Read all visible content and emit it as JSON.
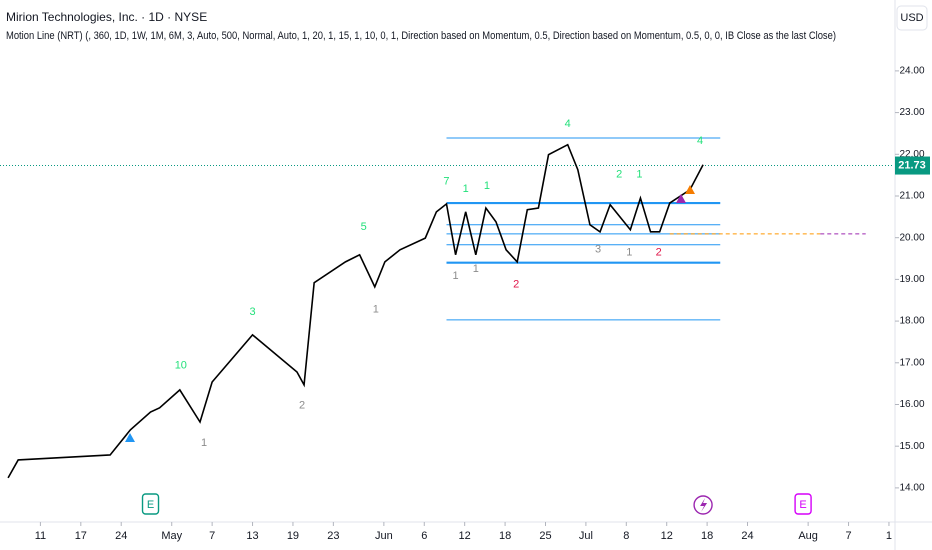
{
  "chart_data": {
    "type": "line",
    "title": "Mirion Technologies, Inc. · 1D · NYSE",
    "subtitle": "Motion Line (NRT) (, 360, 1D, 1W, 1M, 6M, 3, Auto, 500, Normal, Auto, 1, 20, 1, 15, 1, 10, 0, 1, Direction based on Momentum, 0.5, Direction based on Momentum, 0.5, 0, 0, IB Close as the last Close)",
    "currency": "USD",
    "xlim": [
      0,
      88.5
    ],
    "ylim": [
      13.23,
      25.7
    ],
    "xticks": [
      {
        "value": 4,
        "label": "11"
      },
      {
        "value": 8,
        "label": "17"
      },
      {
        "value": 12,
        "label": "24"
      },
      {
        "value": 17,
        "label": "May"
      },
      {
        "value": 21,
        "label": "7"
      },
      {
        "value": 25,
        "label": "13"
      },
      {
        "value": 29,
        "label": "19"
      },
      {
        "value": 33,
        "label": "23"
      },
      {
        "value": 38,
        "label": "Jun"
      },
      {
        "value": 42,
        "label": "6"
      },
      {
        "value": 46,
        "label": "12"
      },
      {
        "value": 50,
        "label": "18"
      },
      {
        "value": 54,
        "label": "25"
      },
      {
        "value": 58,
        "label": "Jul"
      },
      {
        "value": 62,
        "label": "8"
      },
      {
        "value": 66,
        "label": "12"
      },
      {
        "value": 70,
        "label": "18"
      },
      {
        "value": 74,
        "label": "24"
      },
      {
        "value": 80,
        "label": "Aug"
      },
      {
        "value": 84,
        "label": "7"
      },
      {
        "value": 88,
        "label": "1"
      }
    ],
    "yticks": [
      {
        "value": 14,
        "label": "14.00"
      },
      {
        "value": 15,
        "label": "15.00"
      },
      {
        "value": 16,
        "label": "16.00"
      },
      {
        "value": 17,
        "label": "17.00"
      },
      {
        "value": 18,
        "label": "18.00"
      },
      {
        "value": 19,
        "label": "19.00"
      },
      {
        "value": 20,
        "label": "20.00"
      },
      {
        "value": 21,
        "label": "21.00"
      },
      {
        "value": 22,
        "label": "22.00"
      },
      {
        "value": 23,
        "label": "23.00"
      },
      {
        "value": 24,
        "label": "24.00"
      }
    ],
    "series": [
      {
        "color": "#000000",
        "x": [
          0.8,
          1.8,
          10.9,
          12.9,
          14.9,
          15.8,
          17.8,
          19.8,
          21.0,
          25.0,
          29.4,
          30.1,
          31.1,
          34.2,
          35.6,
          37.1,
          38.1,
          39.6,
          42.1,
          43.2,
          44.2,
          45.1,
          46.1,
          47.1,
          48.1,
          49.1,
          50.1,
          51.2,
          52.2,
          53.3,
          54.3,
          56.2,
          57.2,
          58.4,
          59.4,
          60.4,
          62.4,
          63.4,
          64.4,
          65.3,
          66.3,
          68.3,
          69.6
        ],
        "values": [
          14.24,
          14.67,
          14.79,
          15.39,
          15.82,
          15.92,
          16.35,
          15.58,
          16.54,
          17.67,
          16.78,
          16.47,
          18.92,
          19.42,
          19.59,
          18.82,
          19.42,
          19.71,
          19.99,
          20.62,
          20.81,
          19.59,
          20.62,
          19.59,
          20.71,
          20.38,
          19.71,
          19.42,
          20.67,
          20.71,
          21.99,
          22.23,
          21.63,
          20.31,
          20.14,
          20.79,
          20.19,
          20.95,
          20.14,
          20.14,
          20.83,
          21.15,
          21.75
        ]
      }
    ],
    "level_range": [
      44.2,
      71.3
    ],
    "levels": [
      22.39,
      20.31,
      20.09,
      19.83,
      18.03
    ],
    "strong_levels": [
      20.83,
      19.4
    ],
    "level_color": "#2196f3",
    "projection": {
      "value": 20.09,
      "x": [
        66.3,
        81.2,
        85.7
      ]
    },
    "last_price": {
      "value": 21.73,
      "label": "21.73",
      "color": "#089981"
    },
    "annotations": [
      {
        "text": "4",
        "x": 56.2,
        "y": 22.73,
        "color": "#22e07a"
      },
      {
        "text": "4",
        "x": 69.3,
        "y": 22.32,
        "color": "#22e07a"
      },
      {
        "text": "7",
        "x": 44.2,
        "y": 21.34,
        "color": "#22e07a"
      },
      {
        "text": "1",
        "x": 46.1,
        "y": 21.17,
        "color": "#22e07a"
      },
      {
        "text": "1",
        "x": 48.2,
        "y": 21.24,
        "color": "#22e07a"
      },
      {
        "text": "5",
        "x": 36.0,
        "y": 20.26,
        "color": "#22e07a"
      },
      {
        "text": "3",
        "x": 25.0,
        "y": 18.22,
        "color": "#22e07a"
      },
      {
        "text": "10",
        "x": 17.9,
        "y": 16.93,
        "color": "#22e07a"
      },
      {
        "text": "2",
        "x": 61.3,
        "y": 21.51,
        "color": "#22e07a"
      },
      {
        "text": "1",
        "x": 63.3,
        "y": 21.51,
        "color": "#22e07a"
      },
      {
        "text": "1",
        "x": 45.1,
        "y": 19.08,
        "color": "#8c8c8c"
      },
      {
        "text": "1",
        "x": 47.1,
        "y": 19.25,
        "color": "#8c8c8c"
      },
      {
        "text": "1",
        "x": 37.2,
        "y": 18.27,
        "color": "#8c8c8c"
      },
      {
        "text": "2",
        "x": 29.9,
        "y": 15.97,
        "color": "#8c8c8c"
      },
      {
        "text": "1",
        "x": 20.2,
        "y": 15.08,
        "color": "#8c8c8c"
      },
      {
        "text": "3",
        "x": 59.2,
        "y": 19.71,
        "color": "#8c8c8c"
      },
      {
        "text": "1",
        "x": 62.3,
        "y": 19.64,
        "color": "#8c8c8c"
      },
      {
        "text": "2",
        "x": 51.1,
        "y": 18.87,
        "color": "#e0164a"
      },
      {
        "text": "2",
        "x": 65.2,
        "y": 19.64,
        "color": "#e0164a"
      }
    ],
    "events": [
      {
        "x": 14.9,
        "label": "E",
        "color": "#089981"
      },
      {
        "x": 69.6,
        "color": "#9c27b0"
      },
      {
        "x": 79.5,
        "label": "E",
        "color": "#d500f9"
      }
    ]
  }
}
